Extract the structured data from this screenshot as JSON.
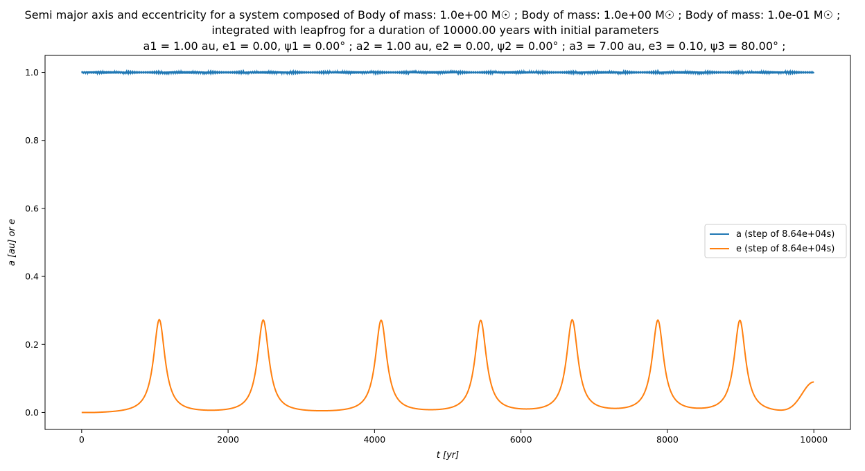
{
  "chart_data": {
    "type": "line",
    "title": {
      "line1": "Semi major axis and eccentricity for a system composed of Body of mass: 1.0e+00 M☉ ; Body of mass: 1.0e+00 M☉ ; Body of mass: 1.0e-01 M☉ ;",
      "line2": "integrated with leapfrog for a duration of 10000.00 years with initial parameters",
      "line3": "a1 = 1.00 au, e1 = 0.00, ψ1 = 0.00° ; a2 = 1.00 au, e2 = 0.00, ψ2 = 0.00° ; a3 = 7.00 au, e3 = 0.10, ψ3 = 80.00° ;"
    },
    "xlabel": "t [yr]",
    "ylabel": "a [au] or e",
    "xlim": [
      -500,
      10500
    ],
    "ylim": [
      -0.05,
      1.05
    ],
    "xticks": [
      0,
      2000,
      4000,
      6000,
      8000,
      10000
    ],
    "yticks": [
      0.0,
      0.2,
      0.4,
      0.6,
      0.8,
      1.0
    ],
    "xtick_labels": [
      "0",
      "2000",
      "4000",
      "6000",
      "8000",
      "10000"
    ],
    "ytick_labels": [
      "0.0",
      "0.2",
      "0.4",
      "0.6",
      "0.8",
      "1.0"
    ],
    "legend_position": "center-right",
    "series": [
      {
        "name": "a (step of 8.64e+04s)",
        "color": "#1f77b4",
        "description_values": {
          "x_start": 0,
          "x_end": 10000,
          "y_mean": 1.0,
          "y_jitter": 0.004
        }
      },
      {
        "name": "e (step of 8.64e+04s)",
        "color": "#ff7f0e",
        "peaks": [
          {
            "t": 1060,
            "e": 0.275
          },
          {
            "t": 2480,
            "e": 0.273
          },
          {
            "t": 4090,
            "e": 0.272
          },
          {
            "t": 5450,
            "e": 0.271
          },
          {
            "t": 6700,
            "e": 0.272
          },
          {
            "t": 7870,
            "e": 0.271
          },
          {
            "t": 8990,
            "e": 0.272
          }
        ],
        "peak_width_yr": 95,
        "end_value": {
          "t": 10000,
          "e": 0.09
        }
      }
    ]
  }
}
